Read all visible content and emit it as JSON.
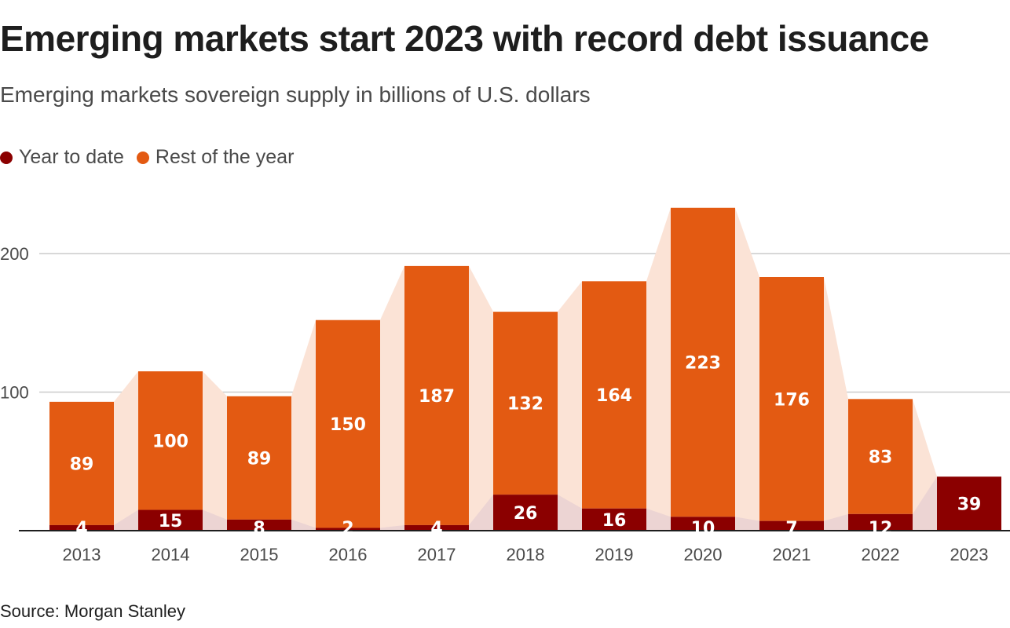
{
  "title": "Emerging markets start 2023 with record debt issuance",
  "subtitle": "Emerging markets sovereign supply in billions of U.S. dollars",
  "source": "Source: Morgan Stanley",
  "colors": {
    "year_to_date": "#8b0000",
    "rest_of_year": "#e35a12",
    "band": "#fbe3d6",
    "grid": "#cccccc",
    "axis": "#1e1e1e"
  },
  "chart_data": {
    "type": "bar",
    "stacked": true,
    "title": "Emerging markets start 2023 with record debt issuance",
    "subtitle": "Emerging markets sovereign supply in billions of U.S. dollars",
    "categories": [
      "2013",
      "2014",
      "2015",
      "2016",
      "2017",
      "2018",
      "2019",
      "2020",
      "2021",
      "2022",
      "2023"
    ],
    "series": [
      {
        "name": "Year to date",
        "key": "year_to_date",
        "values": [
          4,
          15,
          8,
          2,
          4,
          26,
          16,
          10,
          7,
          12,
          39
        ]
      },
      {
        "name": "Rest of the year",
        "key": "rest_of_year",
        "values": [
          89,
          100,
          89,
          150,
          187,
          132,
          164,
          223,
          176,
          83,
          null
        ]
      }
    ],
    "yticks": [
      100,
      200
    ],
    "ylim": [
      0,
      235
    ],
    "xlabel": "",
    "ylabel": "",
    "grid": true,
    "legend_position": "top-left"
  }
}
